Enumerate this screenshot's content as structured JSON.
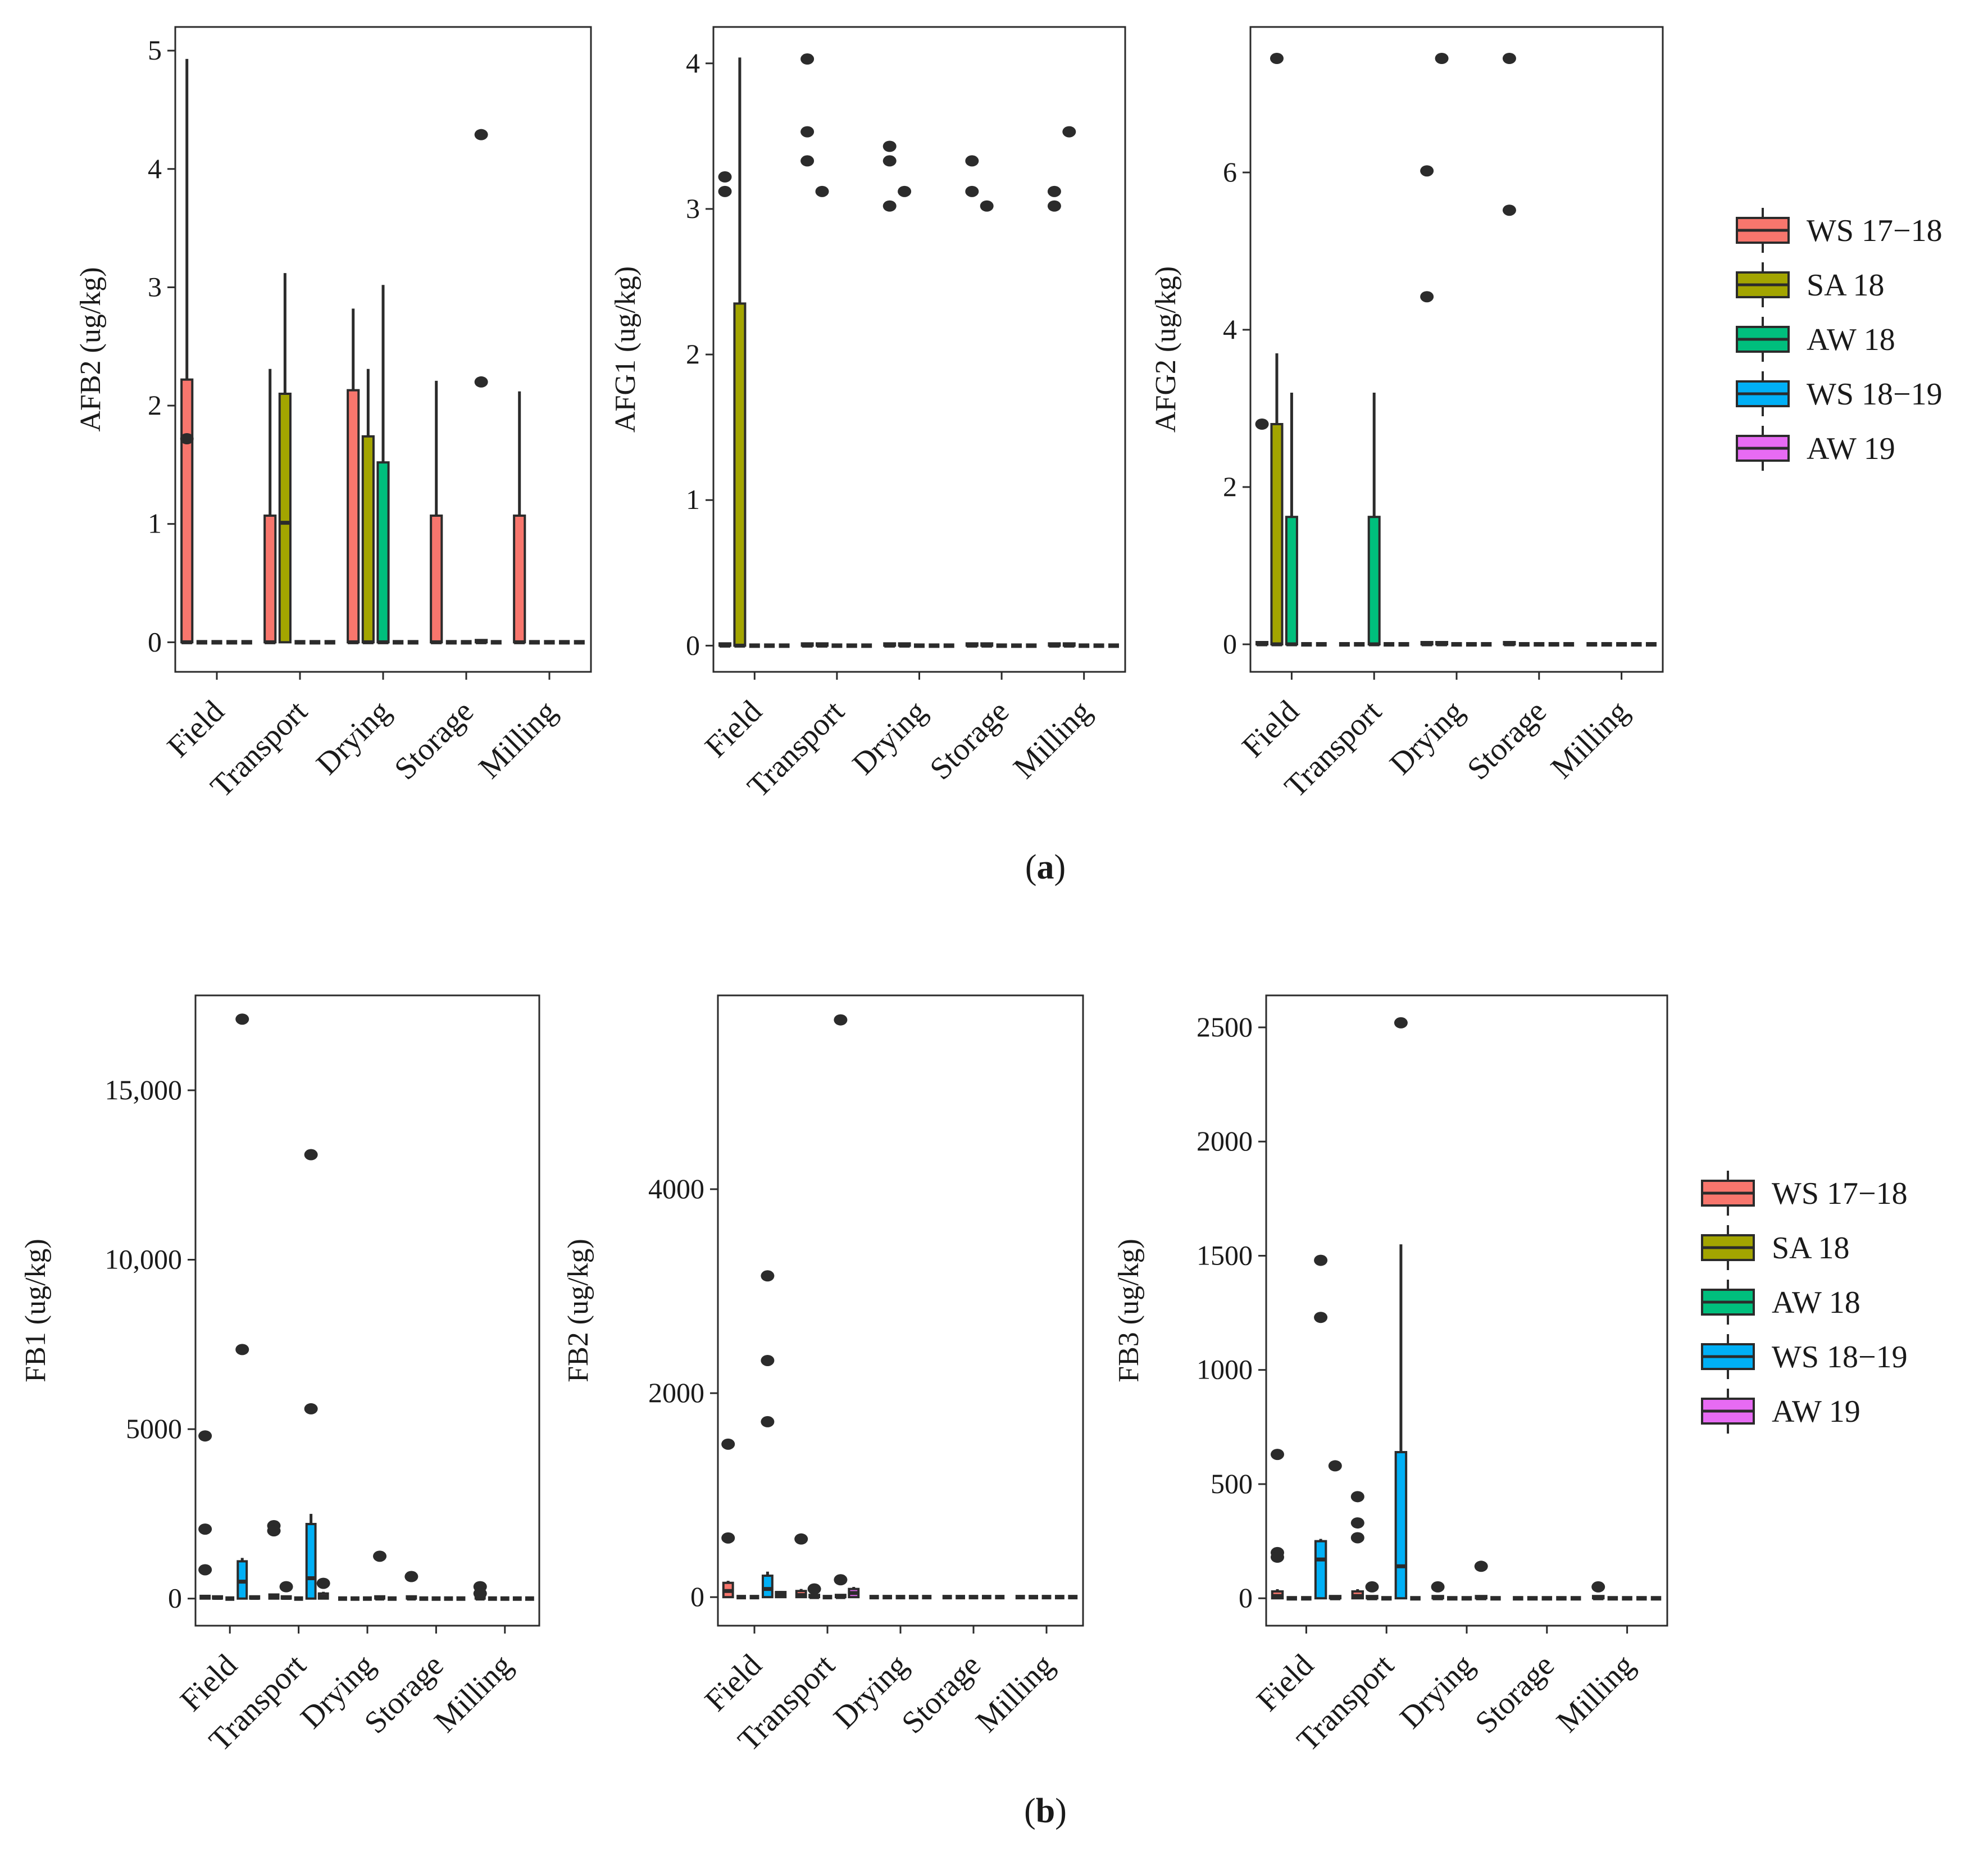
{
  "colors": {
    "WS 17-18": "#F8766D",
    "SA 18": "#A3A500",
    "AW 18": "#00BF7D",
    "WS 18-19": "#00B0F6",
    "AW 19": "#E76BF3"
  },
  "figure_labels": {
    "a": "a",
    "b": "b"
  },
  "chart_data": [
    {
      "id": "AFB2",
      "type": "box",
      "panel": "a",
      "ylabel": "AFB2 (ug/kg)",
      "ylim": [
        -0.25,
        5.2
      ],
      "yticks": [
        0,
        1,
        2,
        3,
        4,
        5
      ],
      "ytick_labels": [
        "0",
        "1",
        "2",
        "3",
        "4",
        "5"
      ],
      "categories": [
        "Field",
        "Transport",
        "Drying",
        "Storage",
        "Milling"
      ],
      "series": [
        "WS 17-18",
        "SA 18",
        "AW 18",
        "WS 18-19",
        "AW 19"
      ],
      "boxes": [
        {
          "cat": 0,
          "s": 0,
          "q1": 0,
          "med": 0,
          "q3": 2.22,
          "lo": 0,
          "hi": 4.93,
          "out": [
            1.72
          ]
        },
        {
          "cat": 1,
          "s": 0,
          "q1": 0,
          "med": 0,
          "q3": 1.07,
          "lo": 0,
          "hi": 2.31,
          "out": []
        },
        {
          "cat": 1,
          "s": 1,
          "q1": 0,
          "med": 1.01,
          "q3": 2.1,
          "lo": 0,
          "hi": 3.12,
          "out": []
        },
        {
          "cat": 2,
          "s": 0,
          "q1": 0,
          "med": 0,
          "q3": 2.13,
          "lo": 0,
          "hi": 2.82,
          "out": []
        },
        {
          "cat": 2,
          "s": 1,
          "q1": 0,
          "med": 0,
          "q3": 1.74,
          "lo": 0,
          "hi": 2.31,
          "out": []
        },
        {
          "cat": 2,
          "s": 2,
          "q1": 0,
          "med": 0,
          "q3": 1.52,
          "lo": 0,
          "hi": 3.02,
          "out": []
        },
        {
          "cat": 3,
          "s": 0,
          "q1": 0,
          "med": 0,
          "q3": 1.07,
          "lo": 0,
          "hi": 2.21,
          "out": []
        },
        {
          "cat": 3,
          "s": 3,
          "q1": 0,
          "med": 0,
          "q3": 0,
          "lo": 0,
          "hi": 0,
          "out": [
            4.29,
            2.2
          ]
        },
        {
          "cat": 4,
          "s": 0,
          "q1": 0,
          "med": 0,
          "q3": 1.07,
          "lo": 0,
          "hi": 2.12,
          "out": []
        }
      ]
    },
    {
      "id": "AFG1",
      "type": "box",
      "panel": "a",
      "ylabel": "AFG1 (ug/kg)",
      "ylim": [
        -0.18,
        4.25
      ],
      "yticks": [
        0,
        1,
        2,
        3,
        4
      ],
      "ytick_labels": [
        "0",
        "1",
        "2",
        "3",
        "4"
      ],
      "categories": [
        "Field",
        "Transport",
        "Drying",
        "Storage",
        "Milling"
      ],
      "series": [
        "WS 17-18",
        "SA 18",
        "AW 18",
        "WS 18-19",
        "AW 19"
      ],
      "boxes": [
        {
          "cat": 0,
          "s": 0,
          "q1": 0,
          "med": 0,
          "q3": 0,
          "lo": 0,
          "hi": 0,
          "out": [
            3.22,
            3.12
          ]
        },
        {
          "cat": 0,
          "s": 1,
          "q1": 0,
          "med": 0,
          "q3": 2.35,
          "lo": 0,
          "hi": 4.04,
          "out": []
        },
        {
          "cat": 1,
          "s": 0,
          "q1": 0,
          "med": 0,
          "q3": 0,
          "lo": 0,
          "hi": 0,
          "out": [
            4.03,
            3.53,
            3.33
          ]
        },
        {
          "cat": 1,
          "s": 1,
          "q1": 0,
          "med": 0,
          "q3": 0,
          "lo": 0,
          "hi": 0,
          "out": [
            3.12
          ]
        },
        {
          "cat": 2,
          "s": 0,
          "q1": 0,
          "med": 0,
          "q3": 0,
          "lo": 0,
          "hi": 0,
          "out": [
            3.43,
            3.33,
            3.02
          ]
        },
        {
          "cat": 2,
          "s": 1,
          "q1": 0,
          "med": 0,
          "q3": 0,
          "lo": 0,
          "hi": 0,
          "out": [
            3.12
          ]
        },
        {
          "cat": 3,
          "s": 0,
          "q1": 0,
          "med": 0,
          "q3": 0,
          "lo": 0,
          "hi": 0,
          "out": [
            3.33,
            3.12
          ]
        },
        {
          "cat": 3,
          "s": 1,
          "q1": 0,
          "med": 0,
          "q3": 0,
          "lo": 0,
          "hi": 0,
          "out": [
            3.02
          ]
        },
        {
          "cat": 4,
          "s": 0,
          "q1": 0,
          "med": 0,
          "q3": 0,
          "lo": 0,
          "hi": 0,
          "out": [
            3.12,
            3.02
          ]
        },
        {
          "cat": 4,
          "s": 1,
          "q1": 0,
          "med": 0,
          "q3": 0,
          "lo": 0,
          "hi": 0,
          "out": [
            3.53
          ]
        }
      ]
    },
    {
      "id": "AFG2",
      "type": "box",
      "panel": "a",
      "ylabel": "AFG2 (ug/kg)",
      "ylim": [
        -0.35,
        7.85
      ],
      "yticks": [
        0,
        2,
        4,
        6
      ],
      "ytick_labels": [
        "0",
        "2",
        "4",
        "6"
      ],
      "categories": [
        "Field",
        "Transport",
        "Drying",
        "Storage",
        "Milling"
      ],
      "series": [
        "WS 17-18",
        "SA 18",
        "AW 18",
        "WS 18-19",
        "AW 19"
      ],
      "boxes": [
        {
          "cat": 0,
          "s": 0,
          "q1": 0,
          "med": 0,
          "q3": 0,
          "lo": 0,
          "hi": 0,
          "out": [
            2.8
          ]
        },
        {
          "cat": 0,
          "s": 1,
          "q1": 0,
          "med": 0,
          "q3": 2.8,
          "lo": 0,
          "hi": 3.7,
          "out": [
            7.45
          ]
        },
        {
          "cat": 0,
          "s": 2,
          "q1": 0,
          "med": 0,
          "q3": 1.62,
          "lo": 0,
          "hi": 3.2,
          "out": []
        },
        {
          "cat": 1,
          "s": 2,
          "q1": 0,
          "med": 0,
          "q3": 1.62,
          "lo": 0,
          "hi": 3.2,
          "out": []
        },
        {
          "cat": 2,
          "s": 0,
          "q1": 0,
          "med": 0,
          "q3": 0,
          "lo": 0,
          "hi": 0,
          "out": [
            6.02,
            4.42
          ]
        },
        {
          "cat": 2,
          "s": 1,
          "q1": 0,
          "med": 0,
          "q3": 0,
          "lo": 0,
          "hi": 0,
          "out": [
            7.45
          ]
        },
        {
          "cat": 3,
          "s": 0,
          "q1": 0,
          "med": 0,
          "q3": 0,
          "lo": 0,
          "hi": 0,
          "out": [
            7.45,
            5.52
          ]
        }
      ]
    },
    {
      "id": "FB1",
      "type": "box",
      "panel": "b",
      "ylabel": "FB1 (ug/kg)",
      "ylim": [
        -800,
        17800
      ],
      "yticks": [
        0,
        5000,
        10000,
        15000
      ],
      "ytick_labels": [
        "0",
        "5000",
        "10,000",
        "15,000"
      ],
      "categories": [
        "Field",
        "Transport",
        "Drying",
        "Storage",
        "Milling"
      ],
      "series": [
        "WS 17-18",
        "SA 18",
        "AW 18",
        "WS 18-19",
        "AW 19"
      ],
      "boxes": [
        {
          "cat": 0,
          "s": 0,
          "q1": 0,
          "med": 30,
          "q3": 80,
          "lo": 0,
          "hi": 100,
          "out": [
            4800,
            2050,
            850
          ]
        },
        {
          "cat": 0,
          "s": 1,
          "q1": 0,
          "med": 20,
          "q3": 60,
          "lo": 0,
          "hi": 80,
          "out": []
        },
        {
          "cat": 0,
          "s": 3,
          "q1": 0,
          "med": 500,
          "q3": 1100,
          "lo": 0,
          "hi": 1200,
          "out": [
            17100,
            7350
          ]
        },
        {
          "cat": 0,
          "s": 4,
          "q1": 0,
          "med": 20,
          "q3": 60,
          "lo": 0,
          "hi": 80,
          "out": []
        },
        {
          "cat": 1,
          "s": 0,
          "q1": 0,
          "med": 60,
          "q3": 120,
          "lo": 0,
          "hi": 150,
          "out": [
            2150,
            2000
          ]
        },
        {
          "cat": 1,
          "s": 1,
          "q1": 0,
          "med": 20,
          "q3": 60,
          "lo": 0,
          "hi": 80,
          "out": [
            350
          ]
        },
        {
          "cat": 1,
          "s": 3,
          "q1": 0,
          "med": 600,
          "q3": 2200,
          "lo": 0,
          "hi": 2500,
          "out": [
            13100,
            5600
          ]
        },
        {
          "cat": 1,
          "s": 4,
          "q1": 0,
          "med": 60,
          "q3": 150,
          "lo": 0,
          "hi": 200,
          "out": [
            450
          ]
        },
        {
          "cat": 2,
          "s": 3,
          "q1": 0,
          "med": 0,
          "q3": 0,
          "lo": 0,
          "hi": 0,
          "out": [
            1250
          ]
        },
        {
          "cat": 3,
          "s": 0,
          "q1": 0,
          "med": 0,
          "q3": 0,
          "lo": 0,
          "hi": 0,
          "out": [
            650
          ]
        },
        {
          "cat": 4,
          "s": 0,
          "q1": 0,
          "med": 0,
          "q3": 0,
          "lo": 0,
          "hi": 0,
          "out": [
            350,
            150
          ]
        }
      ]
    },
    {
      "id": "FB2",
      "type": "box",
      "panel": "b",
      "ylabel": "FB2 (ug/kg)",
      "ylim": [
        -280,
        5900
      ],
      "yticks": [
        0,
        2000,
        4000
      ],
      "ytick_labels": [
        "0",
        "2000",
        "4000"
      ],
      "categories": [
        "Field",
        "Transport",
        "Drying",
        "Storage",
        "Milling"
      ],
      "series": [
        "WS 17-18",
        "SA 18",
        "AW 18",
        "WS 18-19",
        "AW 19"
      ],
      "boxes": [
        {
          "cat": 0,
          "s": 0,
          "q1": 0,
          "med": 60,
          "q3": 140,
          "lo": 0,
          "hi": 160,
          "out": [
            1500,
            580
          ]
        },
        {
          "cat": 0,
          "s": 3,
          "q1": 0,
          "med": 80,
          "q3": 210,
          "lo": 0,
          "hi": 250,
          "out": [
            3150,
            2320,
            1720
          ]
        },
        {
          "cat": 0,
          "s": 4,
          "q1": 0,
          "med": 20,
          "q3": 50,
          "lo": 0,
          "hi": 60,
          "out": []
        },
        {
          "cat": 1,
          "s": 0,
          "q1": 0,
          "med": 20,
          "q3": 60,
          "lo": 0,
          "hi": 80,
          "out": [
            570
          ]
        },
        {
          "cat": 1,
          "s": 1,
          "q1": 0,
          "med": 0,
          "q3": 0,
          "lo": 0,
          "hi": 0,
          "out": [
            80
          ]
        },
        {
          "cat": 1,
          "s": 3,
          "q1": 0,
          "med": 0,
          "q3": 0,
          "lo": 0,
          "hi": 0,
          "out": [
            5660,
            170
          ]
        },
        {
          "cat": 1,
          "s": 4,
          "q1": 0,
          "med": 40,
          "q3": 80,
          "lo": 0,
          "hi": 100,
          "out": []
        }
      ]
    },
    {
      "id": "FB3",
      "type": "box",
      "panel": "b",
      "ylabel": "FB3 (ug/kg)",
      "ylim": [
        -120,
        2640
      ],
      "yticks": [
        0,
        500,
        1000,
        1500,
        2000,
        2500
      ],
      "ytick_labels": [
        "0",
        "500",
        "1000",
        "1500",
        "2000",
        "2500"
      ],
      "categories": [
        "Field",
        "Transport",
        "Drying",
        "Storage",
        "Milling"
      ],
      "series": [
        "WS 17-18",
        "SA 18",
        "AW 18",
        "WS 18-19",
        "AW 19"
      ],
      "boxes": [
        {
          "cat": 0,
          "s": 0,
          "q1": 0,
          "med": 10,
          "q3": 30,
          "lo": 0,
          "hi": 40,
          "out": [
            630,
            200,
            180
          ]
        },
        {
          "cat": 0,
          "s": 3,
          "q1": 0,
          "med": 170,
          "q3": 250,
          "lo": 0,
          "hi": 260,
          "out": [
            1480,
            1230
          ]
        },
        {
          "cat": 0,
          "s": 4,
          "q1": 0,
          "med": 0,
          "q3": 0,
          "lo": 0,
          "hi": 0,
          "out": [
            580
          ]
        },
        {
          "cat": 1,
          "s": 0,
          "q1": 0,
          "med": 10,
          "q3": 30,
          "lo": 0,
          "hi": 40,
          "out": [
            445,
            330,
            265
          ]
        },
        {
          "cat": 1,
          "s": 1,
          "q1": 0,
          "med": 0,
          "q3": 0,
          "lo": 0,
          "hi": 0,
          "out": [
            50
          ]
        },
        {
          "cat": 1,
          "s": 3,
          "q1": 0,
          "med": 140,
          "q3": 640,
          "lo": 0,
          "hi": 1550,
          "out": [
            2520
          ]
        },
        {
          "cat": 2,
          "s": 0,
          "q1": 0,
          "med": 0,
          "q3": 0,
          "lo": 0,
          "hi": 0,
          "out": [
            50
          ]
        },
        {
          "cat": 2,
          "s": 3,
          "q1": 0,
          "med": 0,
          "q3": 0,
          "lo": 0,
          "hi": 0,
          "out": [
            140
          ]
        },
        {
          "cat": 4,
          "s": 0,
          "q1": 0,
          "med": 0,
          "q3": 0,
          "lo": 0,
          "hi": 0,
          "out": [
            50
          ]
        }
      ]
    }
  ],
  "legends": [
    {
      "panel": "a",
      "items": [
        "WS 17−18",
        "SA 18",
        "AW 18",
        "WS 18−19",
        "AW 19"
      ]
    },
    {
      "panel": "b",
      "items": [
        "WS 17−18",
        "SA 18",
        "AW 18",
        "WS 18−19",
        "AW 19"
      ]
    }
  ]
}
